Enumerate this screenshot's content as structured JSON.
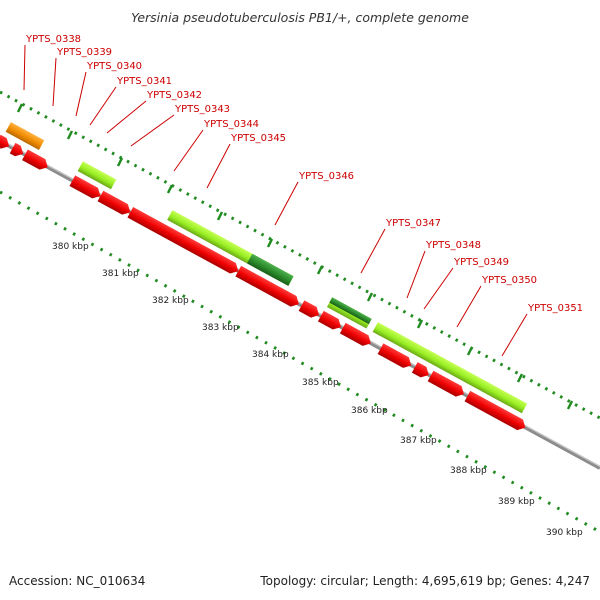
{
  "title": "Yersinia pseudotuberculosis PB1/+, complete genome",
  "footer": {
    "accession": "Accession: NC_010634",
    "topology": "Topology: circular; Length: 4,695,619 bp; Genes: 4,247"
  },
  "gene_tags": [
    "YPTS_0338",
    "YPTS_0339",
    "YPTS_0340",
    "YPTS_0341",
    "YPTS_0342",
    "YPTS_0343",
    "YPTS_0344",
    "YPTS_0345",
    "YPTS_0346",
    "YPTS_0347",
    "YPTS_0348",
    "YPTS_0349",
    "YPTS_0350",
    "YPTS_0351"
  ],
  "ruler_labels": [
    "380 kbp",
    "381 kbp",
    "382 kbp",
    "383 kbp",
    "384 kbp",
    "385 kbp",
    "386 kbp",
    "387 kbp",
    "388 kbp",
    "389 kbp",
    "390 kbp"
  ],
  "colors": {
    "cds_red": "#ee0000",
    "rna_orange": "#f08c00",
    "feature_lightgreen": "#99ee22",
    "feature_darkgreen": "#2a8a2a",
    "backbone": "#8c8c8c",
    "tick_green": "#228b22",
    "label_red": "#cc0000"
  }
}
